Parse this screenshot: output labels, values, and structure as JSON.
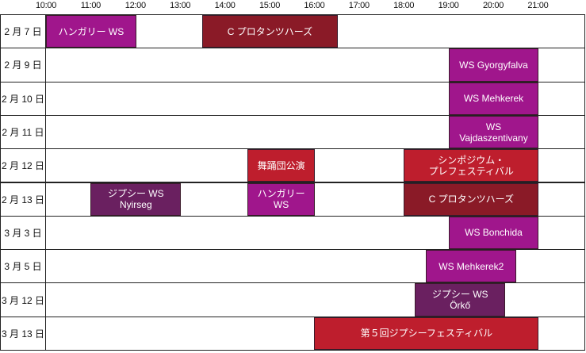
{
  "timeline": {
    "hours": [
      "10:00",
      "11:00",
      "12:00",
      "13:00",
      "14:00",
      "15:00",
      "16:00",
      "17:00",
      "18:00",
      "19:00",
      "20:00",
      "21:00"
    ],
    "start_hour": 10,
    "end_hour": 21
  },
  "colors": {
    "magenta": "#a0168c",
    "maroon": "#8a1a27",
    "crimson": "#be1e2d",
    "plum": "#6a2060"
  },
  "rows": [
    {
      "date": "2 月 7 日",
      "events": [
        {
          "label": "ハンガリー WS",
          "start": 10.0,
          "end": 12.0,
          "color": "magenta"
        },
        {
          "label": "C プロタンツハーズ",
          "start": 13.5,
          "end": 16.5,
          "color": "maroon"
        }
      ]
    },
    {
      "date": "2 月 9 日",
      "events": [
        {
          "label": "WS Gyorgyfalva",
          "start": 19.0,
          "end": 21.0,
          "color": "magenta"
        }
      ]
    },
    {
      "date": "2 月 10 日",
      "events": [
        {
          "label": "WS Mehkerek",
          "start": 19.0,
          "end": 21.0,
          "color": "magenta"
        }
      ]
    },
    {
      "date": "2 月 11 日",
      "events": [
        {
          "label": "WS\nVajdaszentivany",
          "start": 19.0,
          "end": 21.0,
          "color": "magenta"
        }
      ]
    },
    {
      "date": "2 月 12 日",
      "events": [
        {
          "label": "舞踊団公演",
          "start": 14.5,
          "end": 16.0,
          "color": "crimson"
        },
        {
          "label": "シンポジウム・\nプレフェスティバル",
          "start": 18.0,
          "end": 21.0,
          "color": "crimson"
        }
      ]
    },
    {
      "date": "2 月 13 日",
      "events": [
        {
          "label": "ジプシー WS\nNyirseg",
          "start": 11.0,
          "end": 13.0,
          "color": "plum"
        },
        {
          "label": "ハンガリー WS",
          "start": 14.5,
          "end": 16.0,
          "color": "magenta"
        },
        {
          "label": "C プロタンツハーズ",
          "start": 18.0,
          "end": 21.0,
          "color": "maroon"
        }
      ]
    },
    {
      "date": "3 月 3 日",
      "events": [
        {
          "label": "WS Bonchida",
          "start": 19.0,
          "end": 21.0,
          "color": "magenta"
        }
      ]
    },
    {
      "date": "3 月 5 日",
      "events": [
        {
          "label": "WS Mehkerek2",
          "start": 18.5,
          "end": 20.5,
          "color": "magenta"
        }
      ]
    },
    {
      "date": "3 月 12 日",
      "events": [
        {
          "label": "ジプシー WS\nÖrkő",
          "start": 18.25,
          "end": 20.25,
          "color": "plum"
        }
      ]
    },
    {
      "date": "3 月 13 日",
      "events": [
        {
          "label": "第５回ジプシーフェスティバル",
          "start": 16.0,
          "end": 21.0,
          "color": "crimson"
        }
      ]
    }
  ]
}
